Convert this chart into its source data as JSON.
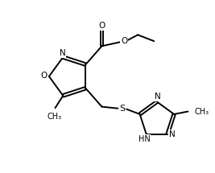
{
  "background": "#ffffff",
  "line_color": "#000000",
  "line_width": 1.4,
  "figsize": [
    2.67,
    2.15
  ],
  "dpi": 100,
  "xlim": [
    0,
    9
  ],
  "ylim": [
    0,
    7.5
  ]
}
